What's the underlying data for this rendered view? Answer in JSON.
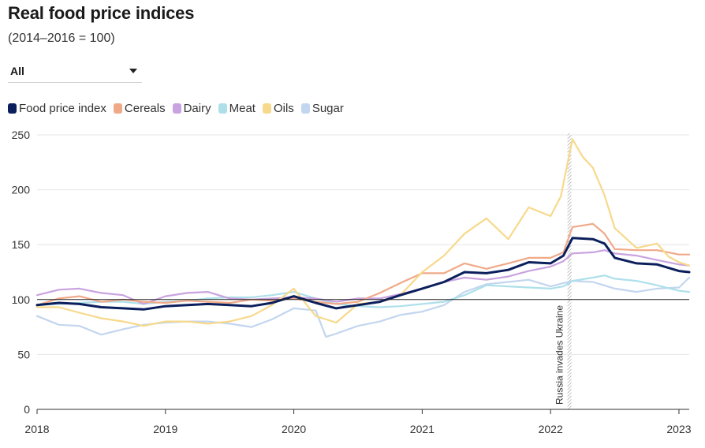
{
  "title": "Real food price indices",
  "subtitle": "(2014–2016 = 100)",
  "filter": {
    "selected": "All"
  },
  "colors": {
    "food": "#0b1f5c",
    "cereals": "#f0a988",
    "dairy": "#c9a3df",
    "meat": "#aee0ea",
    "oils": "#f7d98b",
    "sugar": "#c3d6ef",
    "grid": "#e6e6e6",
    "baseline": "#222222"
  },
  "chart_data": {
    "type": "line",
    "title": "Real food price indices",
    "subtitle": "(2014–2016 = 100)",
    "xlabel": "",
    "ylabel": "",
    "xlim": [
      2018.0,
      2023.08
    ],
    "ylim": [
      0,
      250
    ],
    "yticks": [
      0,
      50,
      100,
      150,
      200,
      250
    ],
    "ytick_labels": [
      "0",
      "50",
      "100",
      "150",
      "200",
      "250"
    ],
    "xticks": [
      2018,
      2019,
      2020,
      2021,
      2022,
      2023
    ],
    "xtick_labels": [
      "2018",
      "2019",
      "2020",
      "2021",
      "2022",
      "2023"
    ],
    "grid": true,
    "reference_line": 100,
    "annotation": {
      "x": 2022.15,
      "text": "Russia invades Ukraine"
    },
    "legend_position": "top-left",
    "series": [
      {
        "name": "Food price index",
        "key": "food",
        "x": [
          2018.0,
          2018.17,
          2018.33,
          2018.5,
          2018.67,
          2018.83,
          2019.0,
          2019.17,
          2019.33,
          2019.5,
          2019.67,
          2019.83,
          2020.0,
          2020.17,
          2020.33,
          2020.5,
          2020.67,
          2020.83,
          2021.0,
          2021.17,
          2021.33,
          2021.5,
          2021.67,
          2021.83,
          2022.0,
          2022.1,
          2022.17,
          2022.33,
          2022.42,
          2022.5,
          2022.67,
          2022.83,
          2023.0,
          2023.08
        ],
        "y": [
          95,
          97,
          96,
          93,
          92,
          91,
          94,
          95,
          96,
          95,
          94,
          97,
          103,
          97,
          92,
          95,
          98,
          104,
          110,
          116,
          125,
          124,
          127,
          134,
          133,
          140,
          156,
          155,
          151,
          138,
          133,
          132,
          126,
          125
        ]
      },
      {
        "name": "Cereals",
        "key": "cereals",
        "x": [
          2018.0,
          2018.17,
          2018.33,
          2018.5,
          2018.67,
          2018.83,
          2019.0,
          2019.17,
          2019.33,
          2019.5,
          2019.67,
          2019.83,
          2020.0,
          2020.17,
          2020.33,
          2020.5,
          2020.67,
          2020.83,
          2021.0,
          2021.17,
          2021.33,
          2021.5,
          2021.67,
          2021.83,
          2022.0,
          2022.1,
          2022.17,
          2022.33,
          2022.42,
          2022.5,
          2022.67,
          2022.83,
          2023.0,
          2023.08
        ],
        "y": [
          95,
          101,
          103,
          98,
          100,
          98,
          97,
          99,
          98,
          97,
          100,
          99,
          101,
          98,
          96,
          98,
          106,
          115,
          124,
          124,
          133,
          128,
          133,
          138,
          138,
          143,
          166,
          169,
          160,
          146,
          145,
          145,
          141,
          141
        ]
      },
      {
        "name": "Dairy",
        "key": "dairy",
        "x": [
          2018.0,
          2018.17,
          2018.33,
          2018.5,
          2018.67,
          2018.83,
          2019.0,
          2019.17,
          2019.33,
          2019.5,
          2019.67,
          2019.83,
          2020.0,
          2020.17,
          2020.33,
          2020.5,
          2020.67,
          2020.83,
          2021.0,
          2021.17,
          2021.33,
          2021.5,
          2021.67,
          2021.83,
          2022.0,
          2022.1,
          2022.17,
          2022.33,
          2022.42,
          2022.5,
          2022.67,
          2022.83,
          2023.0,
          2023.08
        ],
        "y": [
          104,
          109,
          110,
          106,
          104,
          96,
          103,
          106,
          107,
          101,
          100,
          101,
          102,
          101,
          98,
          101,
          101,
          105,
          110,
          116,
          120,
          118,
          121,
          126,
          130,
          135,
          142,
          143,
          145,
          142,
          140,
          136,
          132,
          131
        ]
      },
      {
        "name": "Meat",
        "key": "meat",
        "x": [
          2018.0,
          2018.17,
          2018.33,
          2018.5,
          2018.67,
          2018.83,
          2019.0,
          2019.17,
          2019.33,
          2019.5,
          2019.67,
          2019.83,
          2020.0,
          2020.17,
          2020.33,
          2020.5,
          2020.67,
          2020.83,
          2021.0,
          2021.17,
          2021.33,
          2021.5,
          2021.67,
          2021.83,
          2022.0,
          2022.1,
          2022.17,
          2022.33,
          2022.42,
          2022.5,
          2022.67,
          2022.83,
          2023.0,
          2023.08
        ],
        "y": [
          95,
          96,
          97,
          98,
          98,
          96,
          98,
          99,
          101,
          102,
          102,
          104,
          107,
          101,
          96,
          94,
          93,
          94,
          96,
          98,
          104,
          113,
          112,
          111,
          110,
          112,
          117,
          120,
          122,
          119,
          117,
          113,
          108,
          107
        ]
      },
      {
        "name": "Oils",
        "key": "oils",
        "x": [
          2018.0,
          2018.17,
          2018.33,
          2018.5,
          2018.67,
          2018.83,
          2019.0,
          2019.17,
          2019.33,
          2019.5,
          2019.67,
          2019.83,
          2020.0,
          2020.17,
          2020.33,
          2020.5,
          2020.67,
          2020.83,
          2021.0,
          2021.17,
          2021.33,
          2021.5,
          2021.67,
          2021.83,
          2022.0,
          2022.08,
          2022.17,
          2022.25,
          2022.33,
          2022.42,
          2022.5,
          2022.67,
          2022.83,
          2022.92,
          2023.0,
          2023.08
        ],
        "y": [
          93,
          93,
          88,
          83,
          80,
          76,
          80,
          80,
          78,
          80,
          85,
          95,
          110,
          85,
          79,
          96,
          98,
          104,
          125,
          140,
          160,
          174,
          155,
          184,
          176,
          194,
          246,
          230,
          220,
          195,
          165,
          147,
          151,
          139,
          134,
          131
        ]
      },
      {
        "name": "Sugar",
        "key": "sugar",
        "x": [
          2018.0,
          2018.17,
          2018.33,
          2018.5,
          2018.67,
          2018.83,
          2019.0,
          2019.17,
          2019.33,
          2019.5,
          2019.67,
          2019.83,
          2020.0,
          2020.17,
          2020.25,
          2020.33,
          2020.5,
          2020.67,
          2020.83,
          2021.0,
          2021.17,
          2021.33,
          2021.5,
          2021.67,
          2021.83,
          2022.0,
          2022.17,
          2022.33,
          2022.5,
          2022.67,
          2022.83,
          2023.0,
          2023.08
        ],
        "y": [
          85,
          77,
          76,
          68,
          73,
          77,
          79,
          80,
          80,
          78,
          75,
          82,
          92,
          90,
          66,
          69,
          76,
          80,
          86,
          89,
          95,
          107,
          114,
          116,
          118,
          112,
          117,
          116,
          110,
          107,
          110,
          111,
          120
        ]
      }
    ]
  }
}
